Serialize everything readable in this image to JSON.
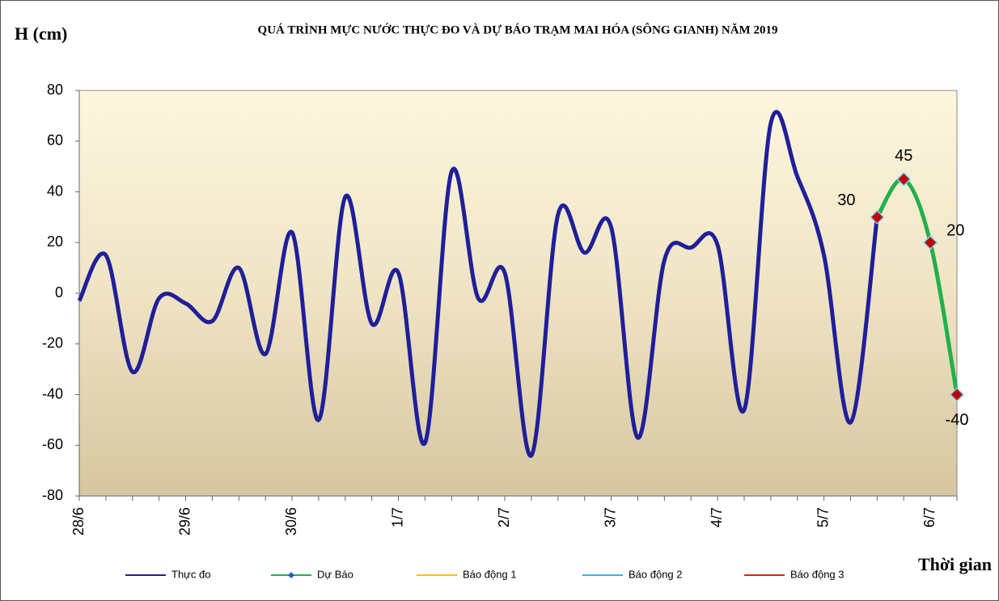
{
  "chart_data": {
    "type": "line",
    "title": "QUÁ TRÌNH MỰC NƯỚC THỰC ĐO VÀ DỰ BÁO TRẠM MAI HÓA (SÔNG GIANH) NĂM  2019",
    "y_label": "H (cm)",
    "x_label": "Thời gian",
    "categories": [
      "28/6",
      null,
      null,
      null,
      "29/6",
      null,
      null,
      null,
      "30/6",
      null,
      null,
      null,
      "1/7",
      null,
      null,
      null,
      "2/7",
      null,
      null,
      null,
      "3/7",
      null,
      null,
      null,
      "4/7",
      null,
      null,
      null,
      "5/7",
      null,
      null,
      null,
      "6/7",
      null
    ],
    "series": [
      {
        "name": "Thực đo",
        "color": "#1f1f9a",
        "values": [
          -3,
          15,
          -31,
          -2,
          -4,
          -11,
          10,
          -24,
          24,
          -50,
          38,
          -12,
          8,
          -59,
          48,
          -2,
          8,
          -64,
          31,
          16,
          26,
          -57,
          13,
          18,
          19,
          -46,
          67,
          46,
          15,
          -51,
          30,
          null,
          null,
          null
        ]
      },
      {
        "name": "Dự Báo",
        "color": "#22b04b",
        "values": [
          null,
          null,
          null,
          null,
          null,
          null,
          null,
          null,
          null,
          null,
          null,
          null,
          null,
          null,
          null,
          null,
          null,
          null,
          null,
          null,
          null,
          null,
          null,
          null,
          null,
          null,
          null,
          null,
          null,
          null,
          30,
          45,
          20,
          -40
        ]
      },
      {
        "name": "Báo động  1",
        "color": "#ffc000",
        "values": [
          null,
          null,
          null,
          null,
          null,
          null,
          null,
          null,
          null,
          null,
          null,
          null,
          null,
          null,
          null,
          null,
          null,
          null,
          null,
          null,
          null,
          null,
          null,
          null,
          null,
          null,
          null,
          null,
          null,
          null,
          null,
          null,
          null,
          null
        ]
      },
      {
        "name": "Báo động  2",
        "color": "#33b5e5",
        "values": [
          null,
          null,
          null,
          null,
          null,
          null,
          null,
          null,
          null,
          null,
          null,
          null,
          null,
          null,
          null,
          null,
          null,
          null,
          null,
          null,
          null,
          null,
          null,
          null,
          null,
          null,
          null,
          null,
          null,
          null,
          null,
          null,
          null,
          null
        ]
      },
      {
        "name": "Báo động  3",
        "color": "#e0201b",
        "values": [
          null,
          null,
          null,
          null,
          null,
          null,
          null,
          null,
          null,
          null,
          null,
          null,
          null,
          null,
          null,
          null,
          null,
          null,
          null,
          null,
          null,
          null,
          null,
          null,
          null,
          null,
          null,
          null,
          null,
          null,
          null,
          null,
          null,
          null
        ]
      }
    ],
    "ylim": [
      -80,
      80
    ],
    "yticks": [
      -80,
      -60,
      -40,
      -20,
      0,
      20,
      40,
      60,
      80
    ],
    "grid": false
  }
}
